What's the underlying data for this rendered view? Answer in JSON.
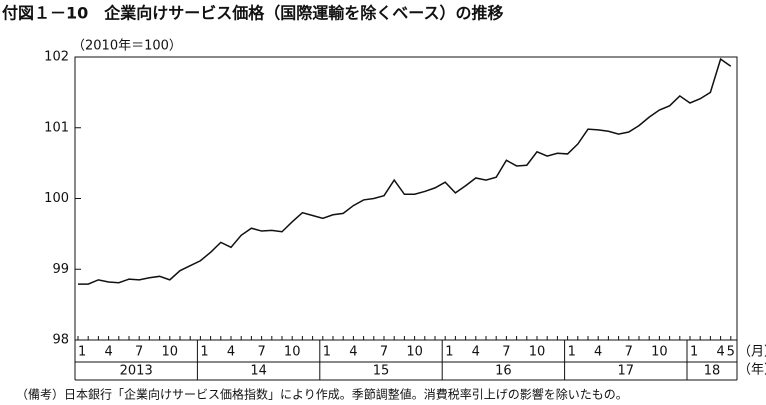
{
  "chart_data": {
    "type": "line",
    "title": "付図１－10　企業向けサービス価格（国際運輸を除くベース）の推移",
    "y_axis_label": "（2010年＝100）",
    "x_unit_month": "（月）",
    "x_unit_year": "（年）",
    "note": "（備考）日本銀行「企業向けサービス価格指数」により作成。季節調整値。消費税率引上げの影響を除いたもの。",
    "categories": [
      "1",
      null,
      null,
      "4",
      null,
      null,
      "7",
      null,
      null,
      "10",
      null,
      null,
      "1",
      null,
      null,
      "4",
      null,
      null,
      "7",
      null,
      null,
      "10",
      null,
      null,
      "1",
      null,
      null,
      "4",
      null,
      null,
      "7",
      null,
      null,
      "10",
      null,
      null,
      "1",
      null,
      null,
      "4",
      null,
      null,
      "7",
      null,
      null,
      "10",
      null,
      null,
      "1",
      null,
      null,
      "4",
      null,
      null,
      "7",
      null,
      null,
      "10",
      null,
      null,
      "1",
      null,
      null,
      "4",
      "5"
    ],
    "year_labels": [
      "2013",
      "14",
      "15",
      "16",
      "17",
      "18"
    ],
    "series": [
      {
        "name": "企業向けサービス価格",
        "color": "#111111",
        "values": [
          98.79,
          98.79,
          98.85,
          98.82,
          98.81,
          98.86,
          98.85,
          98.88,
          98.9,
          98.85,
          98.98,
          99.05,
          99.12,
          99.24,
          99.38,
          99.31,
          99.48,
          99.58,
          99.54,
          99.55,
          99.53,
          99.67,
          99.8,
          99.76,
          99.72,
          99.77,
          99.79,
          99.9,
          99.98,
          100.0,
          100.04,
          100.26,
          100.06,
          100.06,
          100.1,
          100.15,
          100.23,
          100.08,
          100.18,
          100.29,
          100.26,
          100.3,
          100.54,
          100.46,
          100.47,
          100.66,
          100.6,
          100.64,
          100.63,
          100.77,
          100.98,
          100.97,
          100.95,
          100.91,
          100.94,
          101.03,
          101.15,
          101.25,
          101.31,
          101.45,
          101.35,
          101.41,
          101.5,
          101.97,
          101.87
        ]
      }
    ],
    "ylim": [
      98,
      102
    ],
    "yticks": [
      98,
      99,
      100,
      101,
      102
    ]
  }
}
